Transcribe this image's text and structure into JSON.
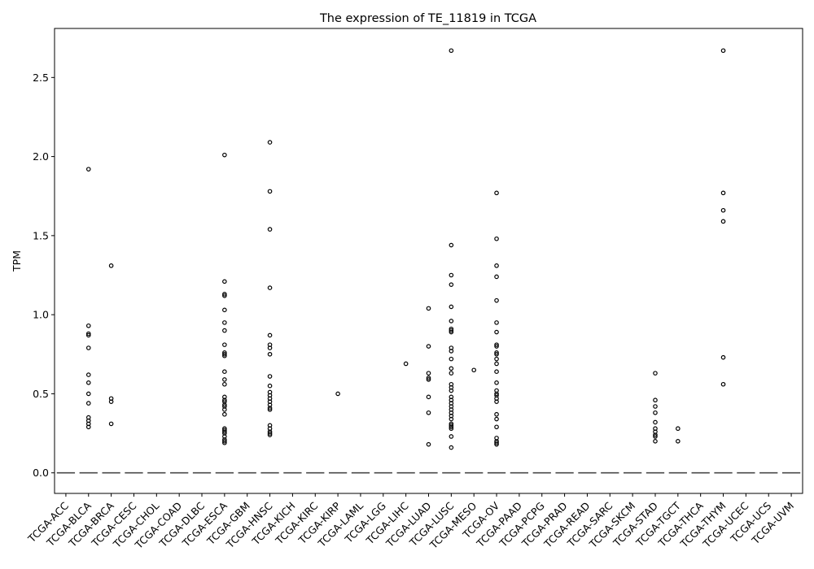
{
  "chart_data": {
    "type": "boxplot",
    "title": "The expression of TE_11819 in TCGA",
    "xlabel": "",
    "ylabel": "TPM",
    "ylim": [
      -0.13,
      2.81
    ],
    "yticks": [
      0.0,
      0.5,
      1.0,
      1.5,
      2.0,
      2.5
    ],
    "ytick_labels": [
      "0.0",
      "0.5",
      "1.0",
      "1.5",
      "2.0",
      "2.5"
    ],
    "grid": false,
    "categories": [
      "TCGA-ACC",
      "TCGA-BLCA",
      "TCGA-BRCA",
      "TCGA-CESC",
      "TCGA-CHOL",
      "TCGA-COAD",
      "TCGA-DLBC",
      "TCGA-ESCA",
      "TCGA-GBM",
      "TCGA-HNSC",
      "TCGA-KICH",
      "TCGA-KIRC",
      "TCGA-KIRP",
      "TCGA-LAML",
      "TCGA-LGG",
      "TCGA-LIHC",
      "TCGA-LUAD",
      "TCGA-LUSC",
      "TCGA-MESO",
      "TCGA-OV",
      "TCGA-PAAD",
      "TCGA-PCPG",
      "TCGA-PRAD",
      "TCGA-READ",
      "TCGA-SARC",
      "TCGA-SKCM",
      "TCGA-STAD",
      "TCGA-TGCT",
      "TCGA-THCA",
      "TCGA-THYM",
      "TCGA-UCEC",
      "TCGA-UCS",
      "TCGA-UVM"
    ],
    "medians": [
      0,
      0,
      0,
      0,
      0,
      0,
      0,
      0,
      0,
      0,
      0,
      0,
      0,
      0,
      0,
      0,
      0,
      0,
      0,
      0,
      0,
      0,
      0,
      0,
      0,
      0,
      0,
      0,
      0,
      0,
      0,
      0,
      0
    ],
    "outliers": [
      [],
      [
        1.92,
        0.93,
        0.88,
        0.87,
        0.79,
        0.62,
        0.57,
        0.5,
        0.44,
        0.35,
        0.33,
        0.31,
        0.29
      ],
      [
        1.31,
        0.47,
        0.45,
        0.31
      ],
      [],
      [],
      [],
      [],
      [
        2.01,
        1.21,
        1.13,
        1.12,
        1.03,
        0.95,
        0.9,
        0.81,
        0.76,
        0.75,
        0.74,
        0.64,
        0.59,
        0.56,
        0.48,
        0.46,
        0.45,
        0.43,
        0.42,
        0.4,
        0.37,
        0.28,
        0.27,
        0.26,
        0.25,
        0.23,
        0.21,
        0.2,
        0.19
      ],
      [],
      [
        2.09,
        1.78,
        1.54,
        1.17,
        0.87,
        0.81,
        0.79,
        0.75,
        0.61,
        0.55,
        0.51,
        0.49,
        0.47,
        0.45,
        0.43,
        0.41,
        0.4,
        0.3,
        0.28,
        0.26,
        0.25,
        0.24
      ],
      [],
      [],
      [
        0.5
      ],
      [],
      [],
      [
        0.69
      ],
      [
        1.04,
        0.8,
        0.63,
        0.6,
        0.59,
        0.48,
        0.38,
        0.18
      ],
      [
        2.67,
        1.44,
        1.25,
        1.19,
        1.05,
        0.96,
        0.91,
        0.9,
        0.89,
        0.79,
        0.77,
        0.72,
        0.66,
        0.63,
        0.56,
        0.54,
        0.52,
        0.48,
        0.46,
        0.44,
        0.42,
        0.4,
        0.38,
        0.36,
        0.34,
        0.31,
        0.3,
        0.29,
        0.28,
        0.23,
        0.16
      ],
      [
        0.65
      ],
      [
        1.77,
        1.48,
        1.31,
        1.24,
        1.09,
        0.95,
        0.89,
        0.81,
        0.8,
        0.76,
        0.75,
        0.72,
        0.69,
        0.64,
        0.57,
        0.52,
        0.5,
        0.49,
        0.47,
        0.45,
        0.37,
        0.34,
        0.29,
        0.22,
        0.2,
        0.19,
        0.18
      ],
      [],
      [],
      [],
      [],
      [],
      [],
      [
        0.63,
        0.46,
        0.42,
        0.38,
        0.32,
        0.28,
        0.26,
        0.24,
        0.23,
        0.2
      ],
      [
        0.28,
        0.2
      ],
      [],
      [
        2.67,
        1.77,
        1.66,
        1.59,
        0.73,
        0.56
      ],
      [],
      [],
      []
    ]
  }
}
